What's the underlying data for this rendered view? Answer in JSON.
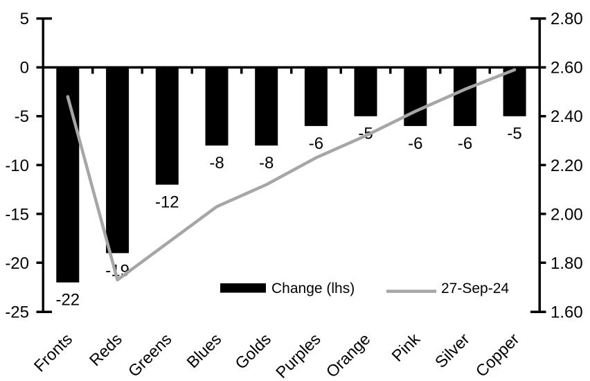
{
  "chart_data": {
    "type": "bar",
    "subtype": "bar-line-combo-dual-axis",
    "title": "",
    "xlabel": "",
    "ylabel_left": "",
    "ylabel_right": "",
    "grid": false,
    "background_color": "#ffffff",
    "categories": [
      "Fronts",
      "Reds",
      "Greens",
      "Blues",
      "Golds",
      "Purples",
      "Orange",
      "Pink",
      "Silver",
      "Copper"
    ],
    "series": [
      {
        "name": "Change (lhs)",
        "type": "bar",
        "axis": "left",
        "color": "#000000",
        "values": [
          -22,
          -19,
          -12,
          -8,
          -8,
          -6,
          -5,
          -6,
          -6,
          -5
        ],
        "data_labels": [
          "-22",
          "-19",
          "-12",
          "-8",
          "-8",
          "-6",
          "-5",
          "-6",
          "-6",
          "-5"
        ]
      },
      {
        "name": "27-Sep-24",
        "type": "line",
        "axis": "right",
        "color": "#a6a6a6",
        "values": [
          2.48,
          1.73,
          1.88,
          2.03,
          2.12,
          2.23,
          2.32,
          2.42,
          2.51,
          2.59
        ]
      }
    ],
    "left_axis": {
      "min": -25,
      "max": 5,
      "step": 5,
      "tick_labels": [
        "5",
        "0",
        "-5",
        "-10",
        "-15",
        "-20",
        "-25"
      ]
    },
    "right_axis": {
      "min": 1.6,
      "max": 2.8,
      "step": 0.2,
      "tick_labels": [
        "2.80",
        "2.60",
        "2.40",
        "2.20",
        "2.00",
        "1.80",
        "1.60"
      ]
    },
    "legend": {
      "position": "inside-bottom",
      "entries": [
        {
          "label": "Change (lhs)",
          "swatch": "bar",
          "color": "#000000"
        },
        {
          "label": "27-Sep-24",
          "swatch": "line",
          "color": "#a6a6a6"
        }
      ]
    },
    "axis_color": "#000000",
    "category_label_rotation_deg": -45
  }
}
